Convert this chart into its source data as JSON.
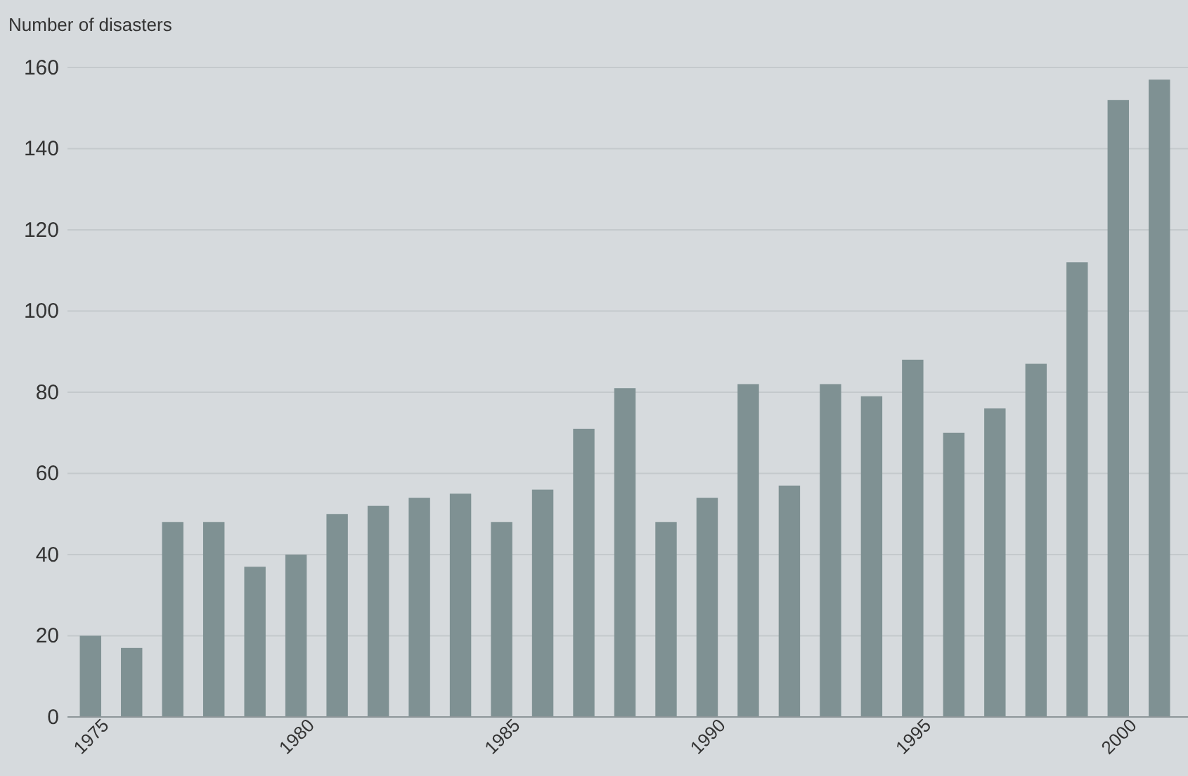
{
  "chart_data": {
    "type": "bar",
    "ylabel": "Number of disasters",
    "categories": [
      "1975",
      null,
      null,
      null,
      null,
      "1980",
      null,
      null,
      null,
      null,
      "1985",
      null,
      null,
      null,
      null,
      "1990",
      null,
      null,
      null,
      null,
      "1995",
      null,
      null,
      null,
      null,
      "2000",
      null
    ],
    "values": [
      20,
      17,
      48,
      48,
      37,
      40,
      50,
      52,
      54,
      55,
      48,
      56,
      71,
      81,
      48,
      54,
      82,
      57,
      82,
      79,
      88,
      70,
      76,
      87,
      112,
      152,
      157
    ],
    "color": "#7f9193",
    "ylim": [
      0,
      160
    ],
    "yticks": [
      0,
      20,
      40,
      60,
      80,
      100,
      120,
      140,
      160
    ],
    "grid": "y"
  }
}
